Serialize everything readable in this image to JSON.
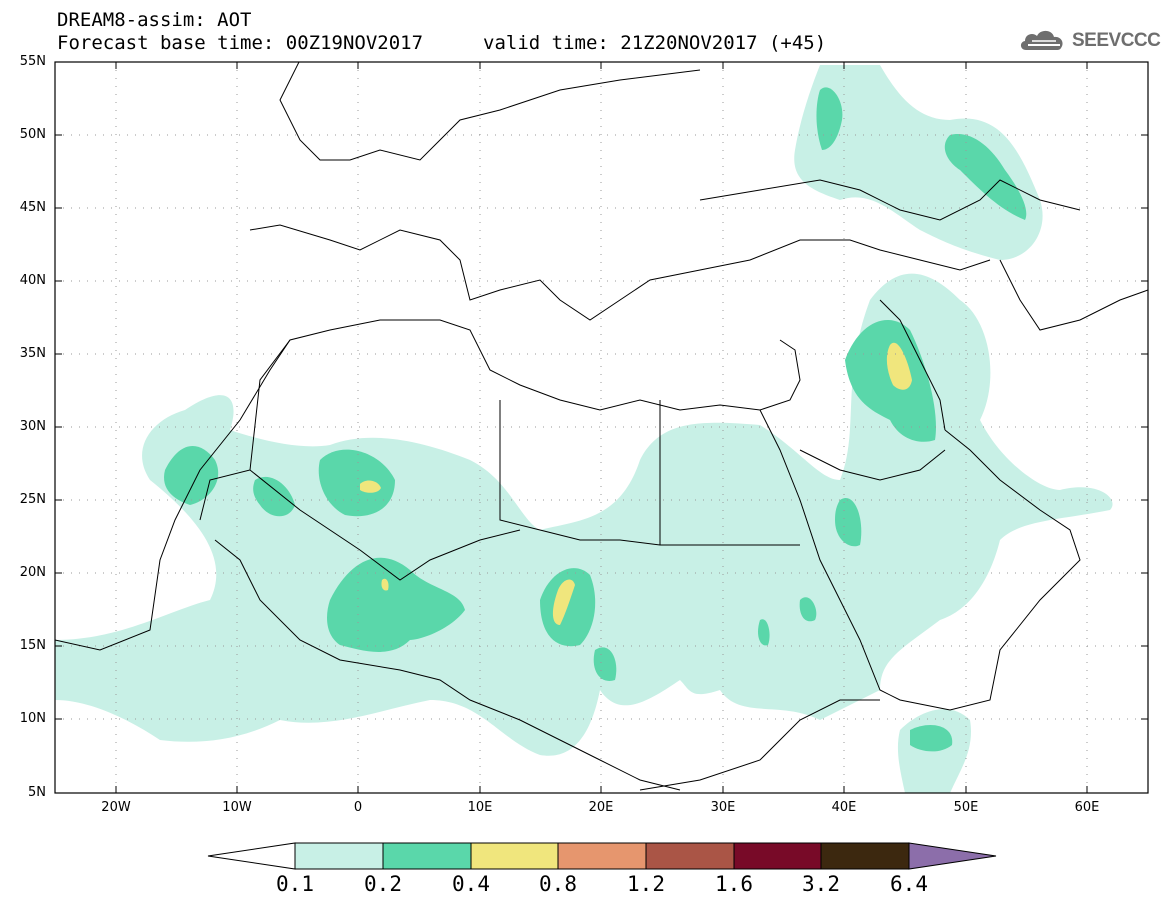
{
  "header": {
    "title": "DREAM8-assim: AOT",
    "base_time": "Forecast base time: 00Z19NOV2017",
    "valid_time": "valid time: 21Z20NOV2017 (+45)",
    "logo_text": "SEEVCCC"
  },
  "map": {
    "lat_labels": [
      "55N",
      "50N",
      "45N",
      "40N",
      "35N",
      "30N",
      "25N",
      "20N",
      "15N",
      "10N",
      "5N"
    ],
    "lon_labels": [
      "20W",
      "10W",
      "0",
      "10E",
      "20E",
      "30E",
      "40E",
      "50E",
      "60E"
    ],
    "lat_range": [
      5,
      55
    ],
    "lon_range": [
      -25,
      65
    ]
  },
  "colorbar": {
    "levels": [
      "0.1",
      "0.2",
      "0.4",
      "0.8",
      "1.2",
      "1.6",
      "3.2",
      "6.4"
    ],
    "colors": [
      "#ffffff",
      "#c8f0e6",
      "#5ad7aa",
      "#f0e67d",
      "#e6966e",
      "#aa5546",
      "#780a28",
      "#3c280f",
      "#8c6eaa"
    ]
  }
}
